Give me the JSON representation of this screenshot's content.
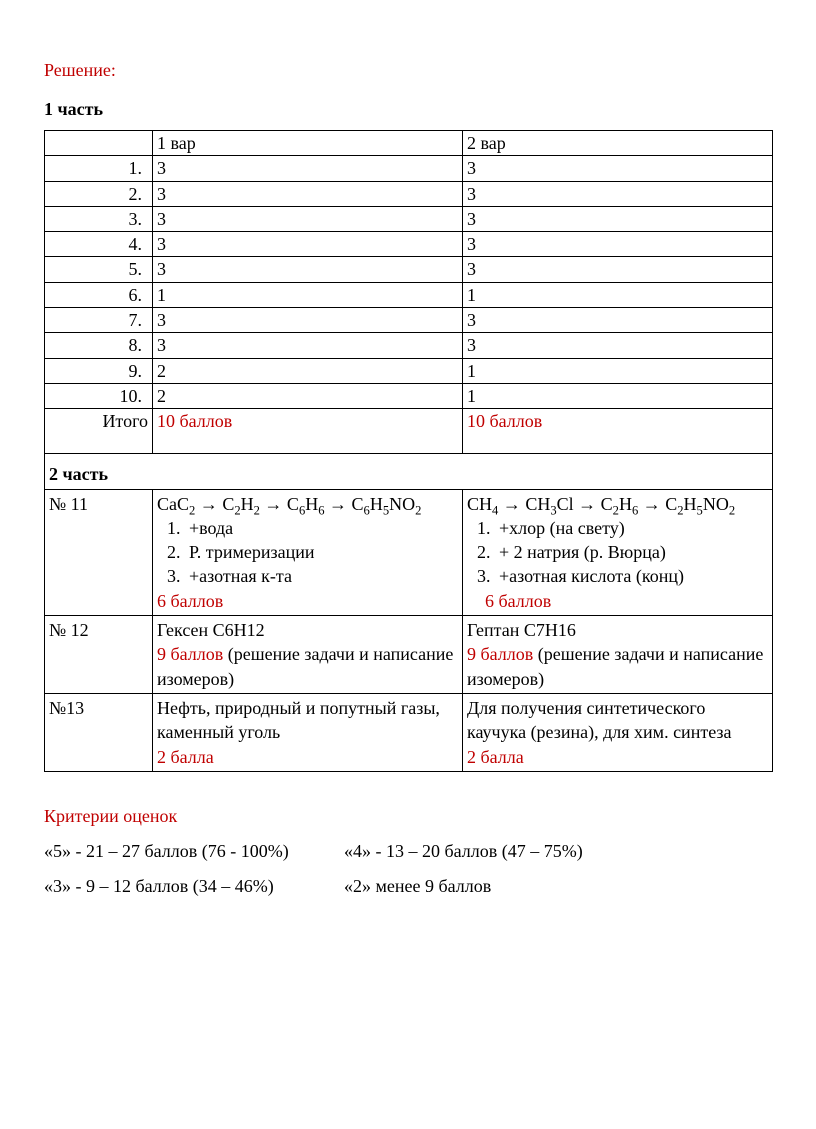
{
  "headings": {
    "solution": "Решение:",
    "part1": "1 часть",
    "part2": "2 часть",
    "criteria": "Критерии оценок"
  },
  "table_header": {
    "col1": "",
    "col2": "1 вар",
    "col3": "2 вар"
  },
  "answers": [
    {
      "n": "1.",
      "v1": "3",
      "v2": "3"
    },
    {
      "n": "2.",
      "v1": "3",
      "v2": "3"
    },
    {
      "n": "3.",
      "v1": "3",
      "v2": "3"
    },
    {
      "n": "4.",
      "v1": "3",
      "v2": "3"
    },
    {
      "n": "5.",
      "v1": "3",
      "v2": "3"
    },
    {
      "n": "6.",
      "v1": "1",
      "v2": "1"
    },
    {
      "n": "7.",
      "v1": "3",
      "v2": "3"
    },
    {
      "n": "8.",
      "v1": "3",
      "v2": "3"
    },
    {
      "n": "9.",
      "v1": "2",
      "v2": "1"
    },
    {
      "n": "10.",
      "v1": "2",
      "v2": "1"
    }
  ],
  "totals": {
    "label": "Итого",
    "v1": "10 баллов",
    "v2": "10 баллов"
  },
  "q11": {
    "label": "№ 11",
    "v1": {
      "chain_html": "CaC<sub>2</sub> → C<sub>2</sub>H<sub>2</sub> → C<sub>6</sub>H<sub>6</sub> → C<sub>6</sub>H<sub>5</sub>NO<sub>2</sub>",
      "steps": [
        "+вода",
        "Р. тримеризации",
        "+азотная к-та"
      ],
      "score": "6 баллов"
    },
    "v2": {
      "chain_html": "CH<sub>4</sub> → CH<sub>3</sub>Cl → C<sub>2</sub>H<sub>6</sub> → C<sub>2</sub>H<sub>5</sub>NO<sub>2</sub>",
      "steps": [
        "+хлор (на свету)",
        "+ 2 натрия (р. Вюрца)",
        "+азотная кислота (конц)"
      ],
      "score": "6 баллов"
    }
  },
  "q12": {
    "label": "№ 12",
    "v1": {
      "answer": "Гексен С6Н12",
      "score": "9 баллов",
      "tail": " (решение задачи и написание изомеров)"
    },
    "v2": {
      "answer": "Гептан С7Н16",
      "score": "9 баллов",
      "tail": " (решение задачи и написание изомеров)"
    }
  },
  "q13": {
    "label": "№13",
    "v1": {
      "answer": "Нефть, природный и попутный газы, каменный уголь",
      "score": "2 балла"
    },
    "v2": {
      "answer": "Для получения синтетического каучука (резина), для хим. синтеза",
      "score": "2 балла"
    }
  },
  "criteria": {
    "g5": "«5» - 21 – 27 баллов (76 - 100%)",
    "g4": "«4» - 13 – 20 баллов (47 – 75%)",
    "g3": "«3» - 9 – 12 баллов (34 – 46%)",
    "g2": "«2» менее 9 баллов"
  },
  "colors": {
    "text": "#000000",
    "accent": "#c00000",
    "border": "#000000",
    "background": "#ffffff"
  }
}
